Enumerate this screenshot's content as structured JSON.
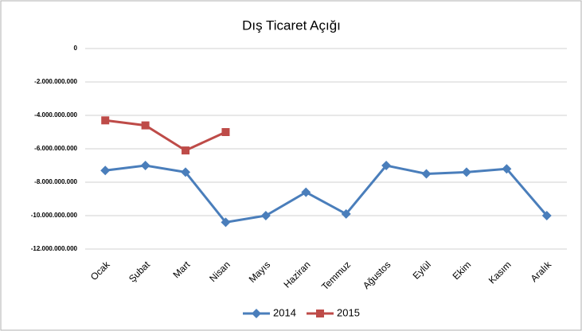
{
  "chart_data": {
    "type": "line",
    "title": "Dış Ticaret Açığı",
    "categories": [
      "Ocak",
      "Şubat",
      "Mart",
      "Nisan",
      "Mayıs",
      "Haziran",
      "Temmuz",
      "Ağustos",
      "Eylül",
      "Ekim",
      "Kasım",
      "Aralık"
    ],
    "series": [
      {
        "name": "2014",
        "color": "#4a7ebb",
        "marker": "diamond",
        "values": [
          -7300000000,
          -7000000000,
          -7400000000,
          -10400000000,
          -10000000000,
          -8600000000,
          -9900000000,
          -7000000000,
          -7500000000,
          -7400000000,
          -7200000000,
          -10000000000
        ]
      },
      {
        "name": "2015",
        "color": "#be4b48",
        "marker": "square",
        "values": [
          -4300000000,
          -4600000000,
          -6100000000,
          -5000000000,
          null,
          null,
          null,
          null,
          null,
          null,
          null,
          null
        ]
      }
    ],
    "ylim": [
      -12000000000,
      0
    ],
    "yticks": [
      0,
      {
        "value": -2000000000,
        "label": "-2.000.000.000"
      },
      {
        "value": -4000000000,
        "label": "-4.000.000.000"
      },
      {
        "value": -6000000000,
        "label": "-6.000.000.000"
      },
      {
        "value": -8000000000,
        "label": "-8.000.000.000"
      },
      {
        "value": -10000000000,
        "label": "-10.000.000.000"
      },
      {
        "value": -12000000000,
        "label": "-12.000.000.000"
      }
    ],
    "grid": true,
    "legend": "bottom"
  }
}
